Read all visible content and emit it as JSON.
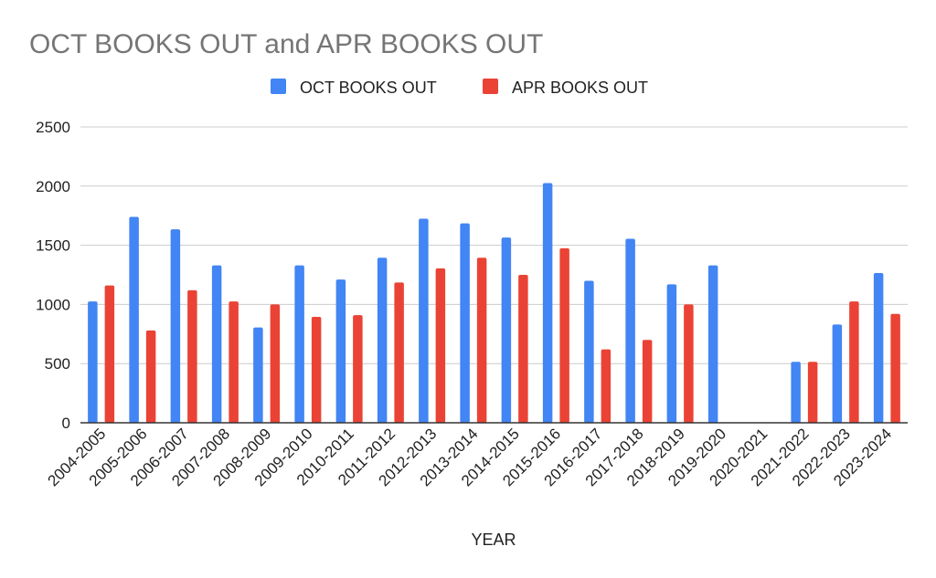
{
  "chart_data": {
    "type": "bar",
    "title": "OCT BOOKS OUT and APR BOOKS OUT",
    "xlabel": "YEAR",
    "ylabel": "",
    "ylim": [
      0,
      2500
    ],
    "yticks": [
      0,
      500,
      1000,
      1500,
      2000,
      2500
    ],
    "grid": true,
    "legend_position": "top-center",
    "categories": [
      "2004-2005",
      "2005-2006",
      "2006-2007",
      "2007-2008",
      "2008-2009",
      "2009-2010",
      "2010-2011",
      "2011-2012",
      "2012-2013",
      "2013-2014",
      "2014-2015",
      "2015-2016",
      "2016-2017",
      "2017-2018",
      "2018-2019",
      "2019-2020",
      "2020-2021",
      "2021-2022",
      "2022-2023",
      "2023-2024"
    ],
    "series": [
      {
        "name": "OCT BOOKS OUT",
        "color": "#4285f4",
        "values": [
          1025,
          1740,
          1635,
          1330,
          805,
          1330,
          1210,
          1395,
          1725,
          1685,
          1565,
          2025,
          1200,
          1555,
          1170,
          1330,
          null,
          515,
          830,
          1265
        ]
      },
      {
        "name": "APR BOOKS OUT",
        "color": "#ea4335",
        "values": [
          1160,
          780,
          1120,
          1025,
          1000,
          895,
          910,
          1185,
          1305,
          1395,
          1250,
          1475,
          620,
          700,
          1000,
          null,
          null,
          515,
          1025,
          920
        ]
      }
    ]
  }
}
